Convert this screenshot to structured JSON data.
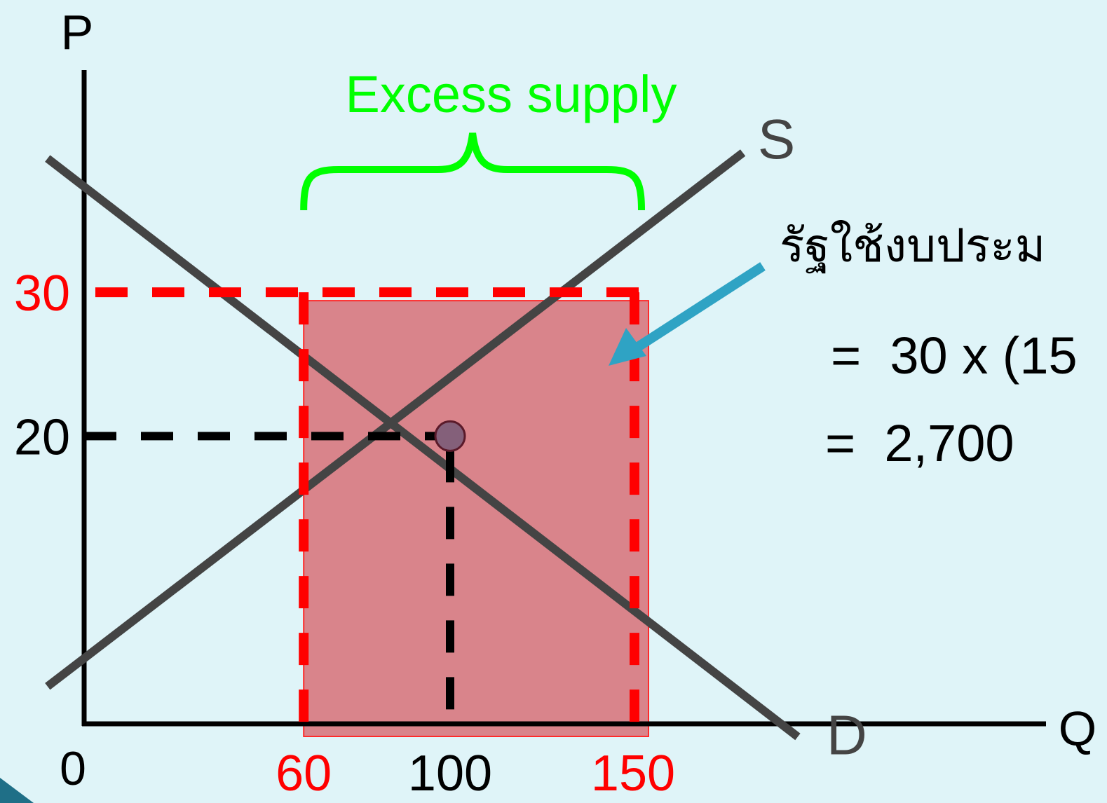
{
  "chart_data": {
    "type": "line",
    "axes": {
      "x_label": "Q",
      "y_label": "P",
      "origin_label": "0",
      "x_ticks": [
        {
          "value": 60,
          "label": "60",
          "color": "#ff0000"
        },
        {
          "value": 100,
          "label": "100",
          "color": "#000000"
        },
        {
          "value": 150,
          "label": "150",
          "color": "#ff0000"
        }
      ],
      "y_ticks": [
        {
          "value": 20,
          "label": "20",
          "color": "#000000"
        },
        {
          "value": 30,
          "label": "30",
          "color": "#ff0000"
        }
      ]
    },
    "series": [
      {
        "name": "S",
        "points": [
          [
            -10,
            2.6
          ],
          [
            180,
            39.7
          ]
        ],
        "color": "#444444"
      },
      {
        "name": "D",
        "points": [
          [
            -10,
            39.3
          ],
          [
            195,
            -0.9
          ]
        ],
        "color": "#444444"
      }
    ],
    "equilibrium": {
      "q": 100,
      "p": 20
    },
    "price_floor": {
      "p": 30,
      "q_demanded": 60,
      "q_supplied": 150
    },
    "shaded_area": {
      "q_from": 60,
      "q_to": 150,
      "p_from": 0,
      "p_to": 30
    },
    "excess_supply_label": "Excess supply",
    "annotation": {
      "lines": [
        "รัฐใช้งบประม",
        "=  30 x (15",
        "=  2,700"
      ]
    },
    "colors": {
      "curves": "#444444",
      "price_floor": "#ff0000",
      "brace": "#00ff00",
      "shade": "#d9848b",
      "arrow": "#2fa3c4",
      "equilibrium_point": "#84607a"
    }
  }
}
